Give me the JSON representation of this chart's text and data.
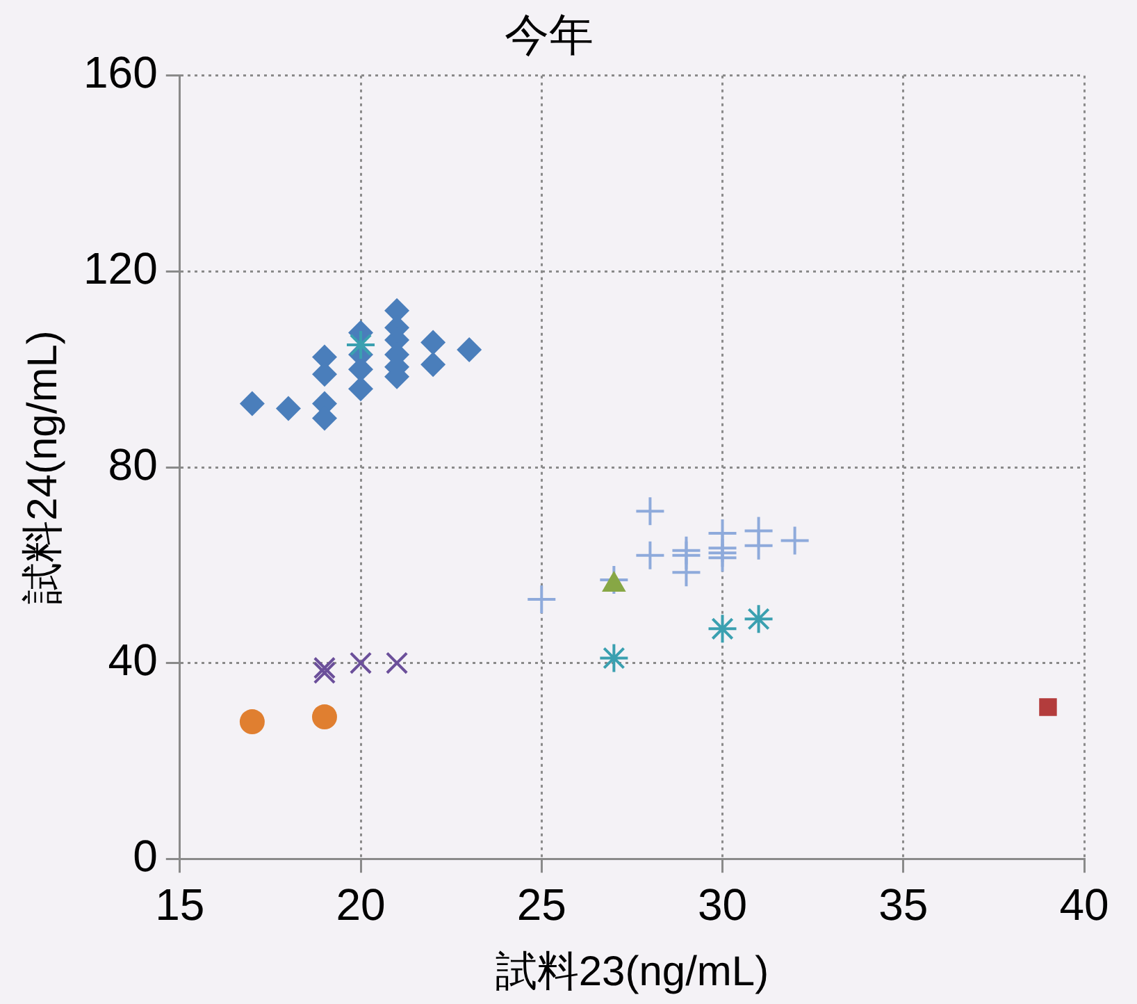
{
  "chart_data": {
    "type": "scatter",
    "title": "今年",
    "xlabel": "試料23(ng/mL)",
    "ylabel": "試料24(ng/mL)",
    "xlim": [
      15,
      40
    ],
    "xticks": [
      15,
      20,
      25,
      30,
      35,
      40
    ],
    "ylim": [
      0,
      160
    ],
    "yticks": [
      0,
      40,
      80,
      120,
      160
    ],
    "grid": true,
    "legend": false,
    "line_style": "dotted",
    "series": [
      {
        "color": "#4a7ebb",
        "marker": "diamond",
        "x": [
          17,
          18,
          19,
          19,
          19,
          19,
          20,
          20,
          20,
          20,
          21,
          21,
          21,
          21,
          21,
          21,
          22,
          22,
          23
        ],
        "values": [
          93,
          92,
          102.5,
          99,
          93,
          90,
          107.5,
          103,
          100,
          96,
          112,
          108.5,
          106,
          103,
          100.5,
          98.5,
          105.5,
          101,
          104
        ]
      },
      {
        "color": "#8eaadb",
        "marker": "cross",
        "x": [
          25,
          27,
          28,
          28,
          29,
          29,
          29,
          30,
          30,
          30,
          30,
          31,
          31,
          32
        ],
        "values": [
          53,
          57,
          71,
          62,
          63,
          62,
          58.5,
          66.5,
          63.5,
          62.5,
          61.5,
          67,
          64,
          65
        ]
      },
      {
        "color": "#87a745",
        "marker": "triangle",
        "x": [
          27
        ],
        "values": [
          56
        ]
      },
      {
        "color": "#3aa0b0",
        "marker": "cross",
        "x": [
          20,
          27,
          30,
          31
        ],
        "values": [
          105,
          41,
          47,
          49
        ]
      },
      {
        "color": "#6b4f9a",
        "marker": "x",
        "x": [
          19,
          19,
          20,
          21
        ],
        "values": [
          39,
          38,
          40,
          40
        ]
      },
      {
        "color": "#e07f30",
        "marker": "circle",
        "x": [
          17,
          19
        ],
        "values": [
          28,
          29
        ]
      },
      {
        "color": "#b33c3c",
        "marker": "square",
        "x": [
          39
        ],
        "values": [
          31
        ]
      }
    ]
  }
}
